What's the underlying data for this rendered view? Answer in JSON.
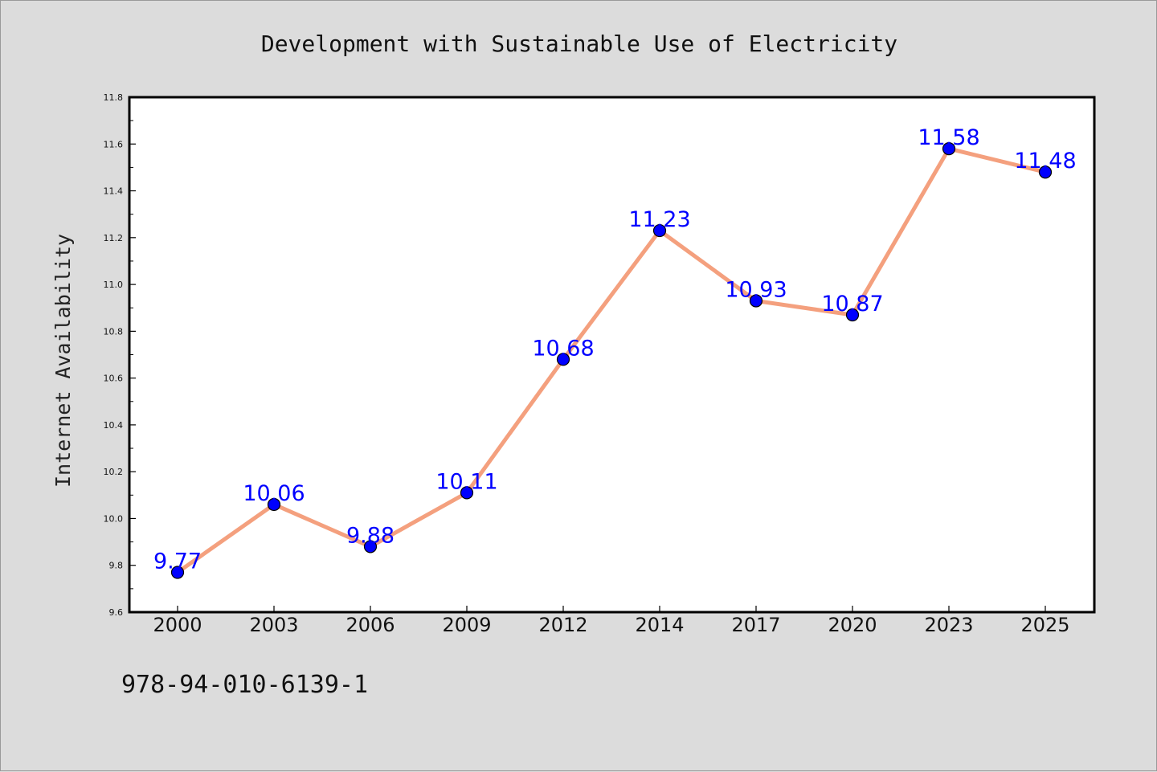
{
  "chart_data": {
    "type": "line",
    "title": "Development with Sustainable Use of Electricity",
    "xlabel": "",
    "ylabel": "Internet Availability",
    "categories": [
      "2000",
      "2003",
      "2006",
      "2009",
      "2012",
      "2014",
      "2017",
      "2020",
      "2023",
      "2025"
    ],
    "series": [
      {
        "values": [
          9.77,
          10.06,
          9.88,
          10.11,
          10.68,
          11.23,
          10.93,
          10.87,
          11.58,
          11.48
        ],
        "labels": [
          "9.77",
          "10.06",
          "9.88",
          "10.11",
          "10.68",
          "11.23",
          "10.93",
          "10.87",
          "11.58",
          "11.48"
        ],
        "line_color": "#f4a07e",
        "marker_color": "#0000ff"
      }
    ],
    "ylim": [
      9.6,
      11.8
    ],
    "yticks": [
      "9.6",
      "9.8",
      "10.0",
      "10.2",
      "10.4",
      "10.6",
      "10.8",
      "11.0",
      "11.2",
      "11.4",
      "11.6",
      "11.8"
    ],
    "grid": false,
    "legend": "none"
  },
  "footer": {
    "isbn": "978-94-010-6139-1"
  },
  "colors": {
    "background": "#dcdcdc",
    "plot_background": "#ffffff",
    "label_color": "#0000ff"
  }
}
